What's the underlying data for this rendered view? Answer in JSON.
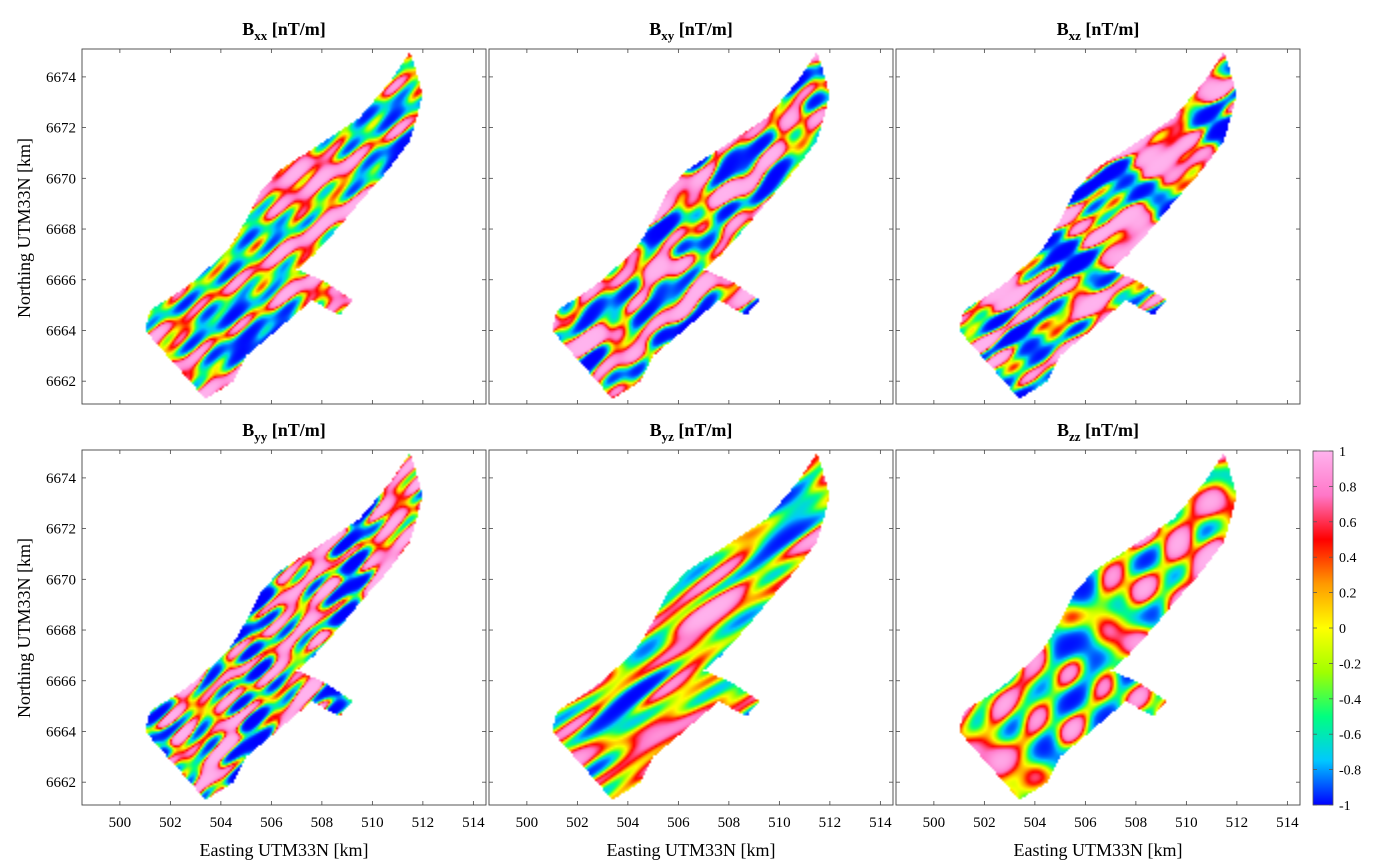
{
  "figure": {
    "panels": [
      {
        "id": "bxx",
        "title_main": "B",
        "title_sub": "xx",
        "title_unit": " [nT/m]",
        "row": 0,
        "col": 0,
        "seed": 11
      },
      {
        "id": "bxy",
        "title_main": "B",
        "title_sub": "xy",
        "title_unit": " [nT/m]",
        "row": 0,
        "col": 1,
        "seed": 23
      },
      {
        "id": "bxz",
        "title_main": "B",
        "title_sub": "xz",
        "title_unit": " [nT/m]",
        "row": 0,
        "col": 2,
        "seed": 37
      },
      {
        "id": "byy",
        "title_main": "B",
        "title_sub": "yy",
        "title_unit": " [nT/m]",
        "row": 1,
        "col": 0,
        "seed": 41
      },
      {
        "id": "byz",
        "title_main": "B",
        "title_sub": "yz",
        "title_unit": " [nT/m]",
        "row": 1,
        "col": 1,
        "seed": 53
      },
      {
        "id": "bzz",
        "title_main": "B",
        "title_sub": "zz",
        "title_unit": " [nT/m]",
        "row": 1,
        "col": 2,
        "seed": 67
      }
    ],
    "colorbar": {
      "range": [
        -1,
        1
      ],
      "ticks": [
        "1",
        "0.8",
        "0.6",
        "0.4",
        "0.2",
        "0",
        "-0.2",
        "-0.4",
        "-0.6",
        "-0.8",
        "-1"
      ],
      "colors": [
        "#0000ff",
        "#00c8ff",
        "#00ff80",
        "#a0ff00",
        "#ffff00",
        "#ff9900",
        "#ff0000",
        "#ff77c8",
        "#ffb3ee"
      ]
    }
  },
  "chart_data": {
    "type": "heatmap",
    "xlabel": "Easting UTM33N [km]",
    "ylabel": "Northing UTM33N [km]",
    "xlim": [
      498.5,
      514.5
    ],
    "ylim": [
      6661.1,
      6675.1
    ],
    "xticks": [
      500,
      502,
      504,
      506,
      508,
      510,
      512,
      514
    ],
    "yticks": [
      6662,
      6664,
      6666,
      6668,
      6670,
      6672,
      6674
    ],
    "xtick_labels": [
      "500",
      "502",
      "504",
      "506",
      "508",
      "510",
      "512",
      "514"
    ],
    "ytick_labels": [
      "6662",
      "6664",
      "6666",
      "6668",
      "6670",
      "6672",
      "6674"
    ],
    "colorbar_range": [
      -1,
      1
    ],
    "survey_outline_km": [
      [
        503.4,
        6661.3
      ],
      [
        501.0,
        6664.0
      ],
      [
        501.2,
        6664.8
      ],
      [
        502.3,
        6665.5
      ],
      [
        503.0,
        6666.0
      ],
      [
        504.3,
        6667.2
      ],
      [
        504.8,
        6668.0
      ],
      [
        505.6,
        6669.5
      ],
      [
        506.3,
        6670.3
      ],
      [
        508.0,
        6671.4
      ],
      [
        509.5,
        6672.4
      ],
      [
        510.7,
        6673.8
      ],
      [
        511.5,
        6675.0
      ],
      [
        512.0,
        6673.3
      ],
      [
        511.5,
        6671.5
      ],
      [
        510.6,
        6670.3
      ],
      [
        509.7,
        6669.3
      ],
      [
        508.6,
        6668.0
      ],
      [
        507.7,
        6667.0
      ],
      [
        507.0,
        6666.4
      ],
      [
        508.0,
        6666.0
      ],
      [
        509.2,
        6665.2
      ],
      [
        508.7,
        6664.6
      ],
      [
        507.6,
        6665.2
      ],
      [
        506.2,
        6664.0
      ],
      [
        505.0,
        6663.0
      ],
      [
        504.5,
        6662.0
      ]
    ]
  }
}
